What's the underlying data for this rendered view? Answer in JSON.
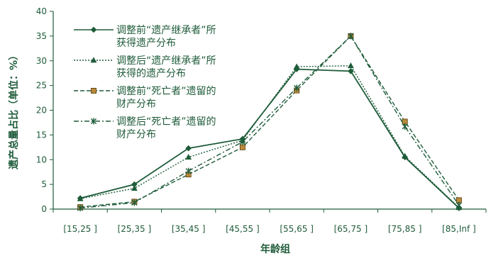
{
  "chart_data": {
    "type": "line",
    "title": "",
    "xlabel": "年龄组",
    "ylabel": "遗产总量占比（单位：%）",
    "categories": [
      "[15,25 ]",
      "[25,35 ]",
      "[35,45 ]",
      "[45,55 ]",
      "[55,65 ]",
      "[65,75 ]",
      "[75,85 ]",
      "[85,Inf ]"
    ],
    "ylim": [
      0,
      40
    ],
    "yticks": [
      0,
      5,
      10,
      15,
      20,
      25,
      30,
      35,
      40
    ],
    "grid": false,
    "legend_position": "top-left",
    "series": [
      {
        "name_lines": [
          "调整前“遗产继承者”所",
          "获得遗产分布"
        ],
        "values": [
          2.2,
          5.0,
          12.3,
          14.2,
          28.3,
          27.9,
          10.5,
          0.2
        ],
        "marker": "diamond",
        "dash": "solid",
        "color": "#1e5c3a"
      },
      {
        "name_lines": [
          "调整后“遗产继承者”所",
          "获得的遗产分布"
        ],
        "values": [
          2.1,
          4.2,
          10.5,
          13.9,
          28.8,
          29.0,
          10.7,
          0.3
        ],
        "marker": "triangle",
        "dash": "dotted",
        "color": "#1e5c3a"
      },
      {
        "name_lines": [
          "调整前“死亡者”遗留的",
          "财产分布"
        ],
        "values": [
          0.4,
          1.5,
          7.0,
          12.5,
          24.0,
          35.0,
          17.7,
          1.8
        ],
        "marker": "square",
        "dash": "dashed",
        "color": "#1e5c3a",
        "marker_color": "#b88a3a"
      },
      {
        "name_lines": [
          "调整后“死亡者”遗留的",
          "财产分布"
        ],
        "values": [
          0.2,
          1.3,
          7.7,
          13.6,
          24.5,
          35.0,
          16.7,
          0.8
        ],
        "marker": "star",
        "dash": "dashdot",
        "color": "#1e5c3a"
      }
    ]
  }
}
